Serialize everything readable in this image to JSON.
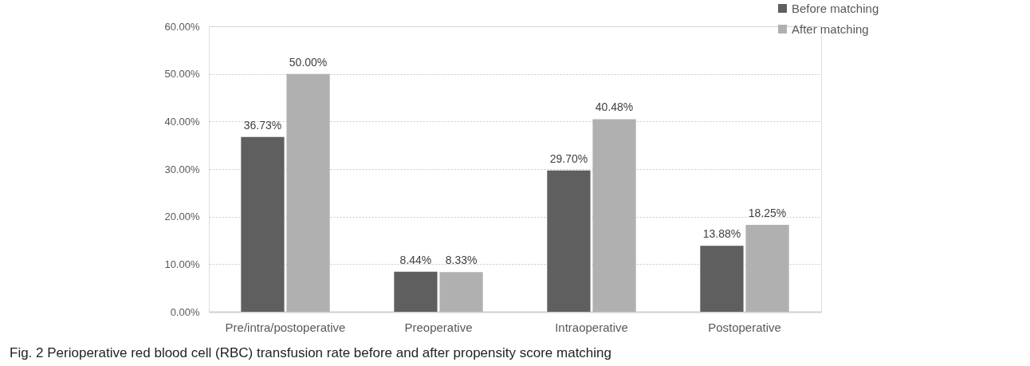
{
  "chart_data": {
    "type": "bar",
    "categories": [
      "Pre/intra/postoperative",
      "Preoperative",
      "Intraoperative",
      "Postoperative"
    ],
    "series": [
      {
        "name": "Before matching",
        "color": "#5f5f5f",
        "values": [
          36.73,
          8.44,
          29.7,
          13.88
        ],
        "value_labels": [
          "36.73%",
          "8.44%",
          "29.70%",
          "13.88%"
        ]
      },
      {
        "name": "After matching",
        "color": "#b0b0b0",
        "values": [
          50.0,
          8.33,
          40.48,
          18.25
        ],
        "value_labels": [
          "50.00%",
          "8.33%",
          "40.48%",
          "18.25%"
        ]
      }
    ],
    "ylim": [
      0,
      60
    ],
    "yticks": [
      {
        "value": 0,
        "label": "0.00%"
      },
      {
        "value": 10,
        "label": "10.00%"
      },
      {
        "value": 20,
        "label": "20.00%"
      },
      {
        "value": 30,
        "label": "30.00%"
      },
      {
        "value": 40,
        "label": "40.00%"
      },
      {
        "value": 50,
        "label": "50.00%"
      },
      {
        "value": 60,
        "label": "60.00%"
      }
    ],
    "grid": "y",
    "legend": "top right",
    "annotations": [
      "Fig. 2 Perioperative red blood cell (RBC) transfusion rate before and after propensity score matching"
    ]
  }
}
